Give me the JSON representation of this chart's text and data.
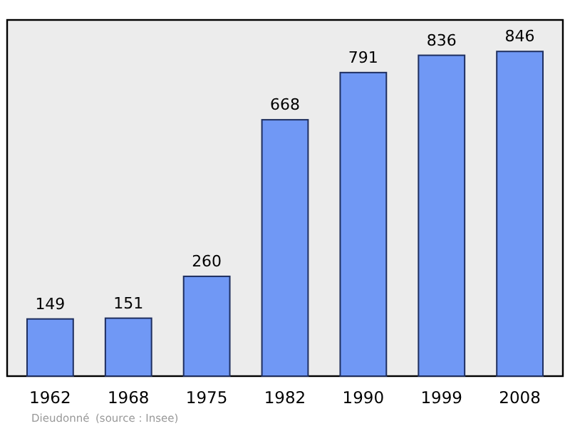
{
  "chart_data": {
    "type": "bar",
    "categories": [
      "1962",
      "1968",
      "1975",
      "1982",
      "1990",
      "1999",
      "2008"
    ],
    "values": [
      149,
      151,
      260,
      668,
      791,
      836,
      846
    ],
    "color": "#7098f5",
    "data_labels": true,
    "annotations": [
      "Dieudonné",
      "(source : Insee)"
    ]
  }
}
